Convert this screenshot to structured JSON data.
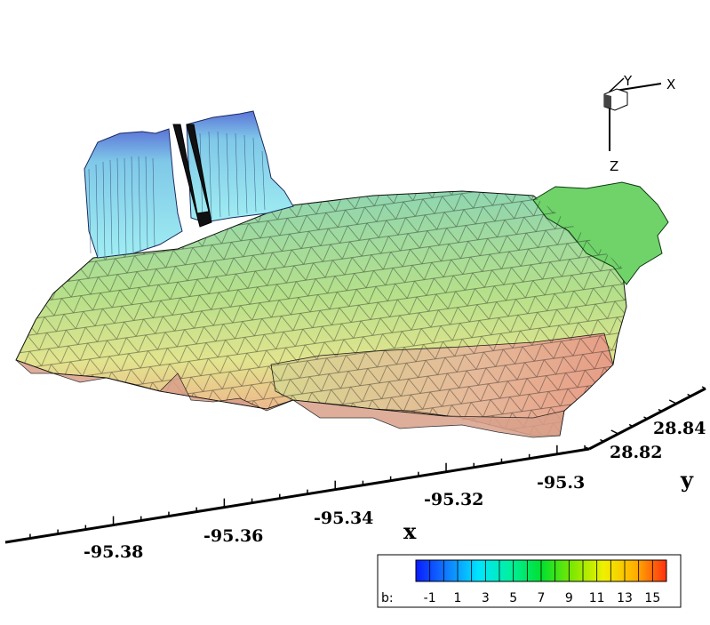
{
  "chart_data": {
    "type": "surface3d",
    "xlabel": "x",
    "ylabel": "y",
    "x_ticks": [
      "-95.38",
      "-95.36",
      "-95.34",
      "-95.32",
      "-95.3"
    ],
    "y_ticks": [
      "28.82",
      "28.84"
    ],
    "orientation_axes": [
      "X",
      "Y",
      "Z"
    ],
    "legend": {
      "variable": "b:",
      "levels": [
        "-1",
        "1",
        "3",
        "5",
        "7",
        "9",
        "11",
        "13",
        "15"
      ],
      "range": [
        -2,
        16
      ],
      "colormap": [
        "#0a1cff",
        "#0f7dff",
        "#00e5ff",
        "#00f0a0",
        "#00e030",
        "#7fe800",
        "#f0f000",
        "#ffb000",
        "#ff3010"
      ]
    },
    "surface": {
      "mesh": "triangulated",
      "low_region_value": -1,
      "plateau_value": 8,
      "high_front_value": 14,
      "edge_value": 10
    }
  }
}
